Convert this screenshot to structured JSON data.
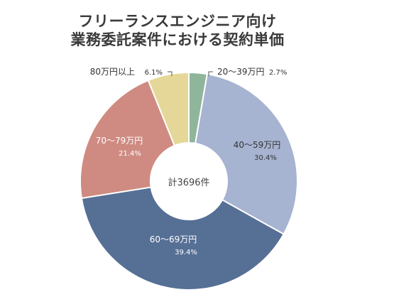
{
  "chart_data": {
    "type": "pie",
    "title_line1": "フリーランスエンジニア向け",
    "title_line2": "業務委託案件における契約単価",
    "center_label": "計3696件",
    "slices": [
      {
        "label": "20〜39万円",
        "percent": 2.7,
        "percent_text": "2.7%",
        "color": "#8fb59b"
      },
      {
        "label": "40〜59万円",
        "percent": 30.4,
        "percent_text": "30.4%",
        "color": "#a6b3d1"
      },
      {
        "label": "60〜69万円",
        "percent": 39.4,
        "percent_text": "39.4%",
        "color": "#566f95"
      },
      {
        "label": "70〜79万円",
        "percent": 21.4,
        "percent_text": "21.4%",
        "color": "#cf8b81"
      },
      {
        "label": "80万円以上",
        "percent": 6.1,
        "percent_text": "6.1%",
        "color": "#e5d797"
      }
    ]
  }
}
